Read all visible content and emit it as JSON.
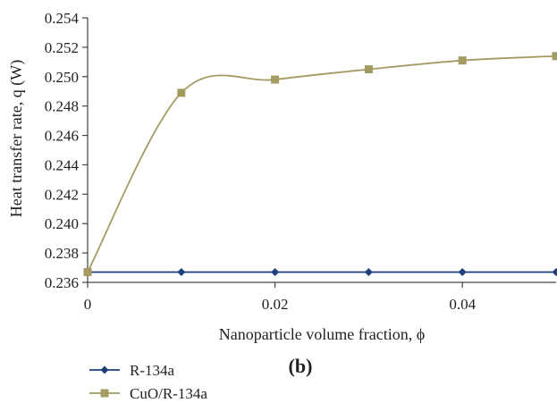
{
  "chart_data": {
    "type": "line",
    "xlabel": "Nanoparticle volume fraction, ϕ",
    "ylabel": "Heat transfer rate, q (W)",
    "xlim": [
      0,
      0.05
    ],
    "ylim": [
      0.236,
      0.254
    ],
    "x_ticks": [
      0,
      0.02,
      0.04
    ],
    "x_tick_labels": [
      "0",
      "0.02",
      "0.04"
    ],
    "y_ticks": [
      0.236,
      0.238,
      0.24,
      0.242,
      0.244,
      0.246,
      0.248,
      0.25,
      0.252,
      0.254
    ],
    "y_tick_labels": [
      "0.236",
      "0.238",
      "0.240",
      "0.242",
      "0.244",
      "0.246",
      "0.248",
      "0.250",
      "0.252",
      "0.254"
    ],
    "grid": false,
    "legend_position": "bottom-left",
    "panel_label": "(b)",
    "series": [
      {
        "name": "R-134a",
        "color": "#1f3f7a",
        "marker": "diamond",
        "smooth": false,
        "x": [
          0,
          0.01,
          0.02,
          0.03,
          0.04,
          0.05
        ],
        "y": [
          0.2367,
          0.2367,
          0.2367,
          0.2367,
          0.2367,
          0.2367
        ]
      },
      {
        "name": "CuO/R-134a",
        "color": "#a39b62",
        "marker": "square",
        "smooth": true,
        "x": [
          0,
          0.01,
          0.02,
          0.03,
          0.04,
          0.05
        ],
        "y": [
          0.2367,
          0.2489,
          0.2498,
          0.2505,
          0.2511,
          0.2514
        ]
      }
    ]
  }
}
